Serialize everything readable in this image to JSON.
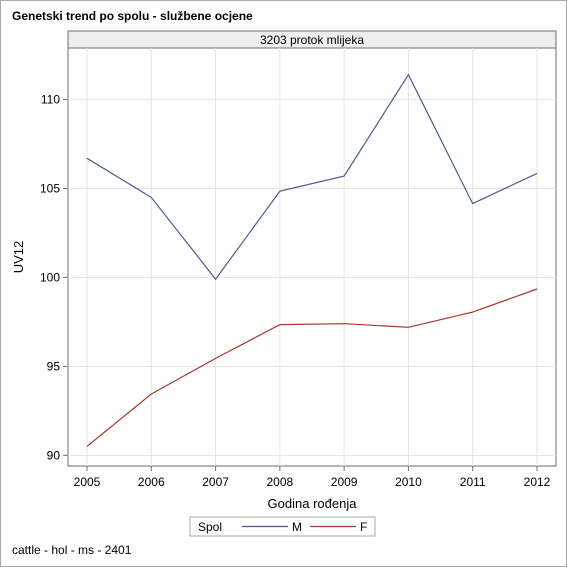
{
  "page": {
    "title": "Genetski trend po spolu - službene ocjene",
    "footnote": "cattle - hol - ms - 2401"
  },
  "chart_data": {
    "type": "line",
    "panel_label": "3203 protok mlijeka",
    "x": [
      2005,
      2006,
      2007,
      2008,
      2009,
      2010,
      2011,
      2012
    ],
    "series": [
      {
        "name": "M",
        "color": "#4b5a93",
        "values": [
          106.7,
          104.5,
          99.9,
          104.85,
          105.7,
          111.4,
          104.15,
          105.85
        ]
      },
      {
        "name": "F",
        "color": "#a23a2e",
        "values": [
          90.5,
          93.45,
          95.45,
          97.35,
          97.4,
          97.2,
          98.05,
          99.35
        ]
      }
    ],
    "xlabel": "Godina rođenja",
    "ylabel": "UV12",
    "yticks": [
      90,
      95,
      100,
      105,
      110
    ],
    "ylim": [
      89.4,
      112.9
    ],
    "grid": true,
    "legend": {
      "title": "Spol",
      "placement": "bottom"
    }
  }
}
